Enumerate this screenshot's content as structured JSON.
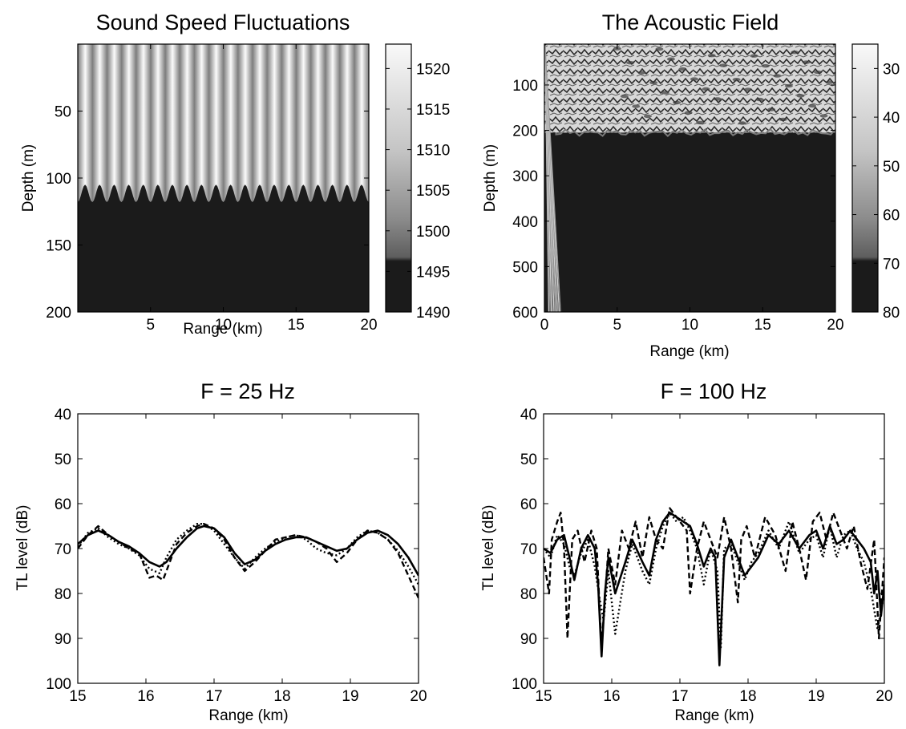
{
  "chart_data": [
    {
      "type": "heatmap",
      "title": "Sound Speed Fluctuations",
      "xlabel": "Range (km)",
      "ylabel": "Depth (m)",
      "xlim": [
        0,
        20
      ],
      "ylim": [
        200,
        0
      ],
      "y_inverted": true,
      "xticks": [
        5,
        10,
        15,
        20
      ],
      "yticks": [
        50,
        100,
        150,
        200
      ],
      "colormap": "gray",
      "num_oscillations": 20,
      "mixed_layer_depth_range_m": [
        105,
        118
      ],
      "colorbar": {
        "ticks": [
          1520,
          1515,
          1510,
          1505,
          1500,
          1495,
          1490
        ],
        "range": [
          1490,
          1523
        ]
      }
    },
    {
      "type": "heatmap",
      "title": "The Acoustic Field",
      "xlabel": "Range (km)",
      "ylabel": "Depth (m)",
      "xlim": [
        0,
        20
      ],
      "ylim": [
        600,
        10
      ],
      "y_inverted": true,
      "xticks": [
        0,
        5,
        10,
        15,
        20
      ],
      "yticks": [
        100,
        200,
        300,
        400,
        500,
        600
      ],
      "colormap": "gray",
      "bright_layer_depth_m": 205,
      "colorbar": {
        "ticks": [
          30,
          40,
          50,
          60,
          70,
          80
        ],
        "range": [
          25,
          80
        ]
      }
    },
    {
      "type": "line",
      "title": "F = 25 Hz",
      "xlabel": "Range (km)",
      "ylabel": "TL level (dB)",
      "xlim": [
        15,
        20
      ],
      "ylim": [
        100,
        40
      ],
      "y_inverted": true,
      "xticks": [
        15,
        16,
        17,
        18,
        19,
        20
      ],
      "yticks": [
        40,
        50,
        60,
        70,
        80,
        90,
        100
      ],
      "series": [
        {
          "style": "solid",
          "x": [
            15.0,
            15.15,
            15.3,
            15.45,
            15.6,
            15.75,
            15.9,
            16.05,
            16.2,
            16.3,
            16.45,
            16.6,
            16.75,
            16.85,
            17.0,
            17.15,
            17.3,
            17.45,
            17.6,
            17.75,
            17.9,
            18.05,
            18.2,
            18.35,
            18.5,
            18.65,
            18.8,
            18.95,
            19.1,
            19.25,
            19.4,
            19.55,
            19.7,
            19.85,
            20.0
          ],
          "y": [
            69,
            67,
            66,
            67,
            68.5,
            69.5,
            71,
            73,
            74,
            73,
            70,
            67.5,
            65.5,
            65,
            65.5,
            67.5,
            71,
            73.5,
            72.5,
            70.5,
            69,
            68,
            67.5,
            67.5,
            68.5,
            69.5,
            70.5,
            70,
            68,
            66.5,
            66,
            67,
            69,
            72,
            76
          ]
        },
        {
          "style": "dotted",
          "x": [
            15.0,
            15.15,
            15.3,
            15.45,
            15.6,
            15.75,
            15.9,
            16.05,
            16.2,
            16.3,
            16.45,
            16.6,
            16.75,
            16.85,
            17.0,
            17.15,
            17.3,
            17.45,
            17.6,
            17.75,
            17.9,
            18.05,
            18.2,
            18.35,
            18.5,
            18.65,
            18.8,
            18.95,
            19.1,
            19.25,
            19.4,
            19.55,
            19.7,
            19.85,
            20.0
          ],
          "y": [
            69.5,
            66.5,
            65.5,
            67.5,
            69,
            70,
            71.5,
            74.5,
            75.5,
            72,
            68,
            66,
            64.5,
            64.5,
            66,
            69,
            72,
            74.5,
            72,
            70,
            68.5,
            67.5,
            67,
            68,
            70,
            71,
            71.5,
            70,
            67.5,
            66,
            66.5,
            68,
            70.5,
            74,
            78
          ]
        },
        {
          "style": "dashed",
          "x": [
            15.0,
            15.15,
            15.3,
            15.45,
            15.6,
            15.75,
            15.9,
            16.05,
            16.15,
            16.25,
            16.35,
            16.45,
            16.6,
            16.75,
            16.85,
            17.0,
            17.15,
            17.3,
            17.45,
            17.6,
            17.75,
            17.9,
            18.05,
            18.2,
            18.35,
            18.5,
            18.65,
            18.8,
            18.95,
            19.1,
            19.25,
            19.4,
            19.55,
            19.7,
            19.85,
            20.0
          ],
          "y": [
            70,
            67,
            65,
            67,
            68.5,
            70,
            71,
            76.5,
            76,
            77,
            73,
            69,
            66.5,
            65,
            64.5,
            65.5,
            68,
            72,
            75,
            73,
            70.5,
            68,
            67.5,
            67,
            67.5,
            68.5,
            70,
            73,
            71,
            68,
            66,
            66.5,
            68,
            71,
            76,
            81
          ]
        }
      ]
    },
    {
      "type": "line",
      "title": "F = 100 Hz",
      "xlabel": "Range (km)",
      "ylabel": "TL level (dB)",
      "xlim": [
        15,
        20
      ],
      "ylim": [
        100,
        40
      ],
      "y_inverted": true,
      "xticks": [
        15,
        16,
        17,
        18,
        19,
        20
      ],
      "yticks": [
        40,
        50,
        60,
        70,
        80,
        90,
        100
      ],
      "series": [
        {
          "style": "solid",
          "x": [
            15.0,
            15.1,
            15.2,
            15.3,
            15.38,
            15.45,
            15.55,
            15.65,
            15.75,
            15.8,
            15.85,
            15.9,
            15.95,
            16.05,
            16.2,
            16.3,
            16.45,
            16.55,
            16.65,
            16.75,
            16.85,
            16.95,
            17.05,
            17.15,
            17.25,
            17.35,
            17.45,
            17.52,
            17.58,
            17.65,
            17.75,
            17.85,
            17.95,
            18.05,
            18.15,
            18.3,
            18.45,
            18.6,
            18.75,
            18.9,
            19.0,
            19.1,
            19.2,
            19.3,
            19.4,
            19.5,
            19.6,
            19.7,
            19.8,
            19.85,
            19.9,
            19.95,
            20.0
          ],
          "y": [
            70,
            71,
            68,
            67,
            72,
            77,
            70,
            67,
            70,
            78,
            94,
            80,
            72,
            80,
            73,
            68,
            73,
            76,
            68,
            64,
            62,
            63,
            64,
            65,
            69,
            74,
            70,
            72,
            96,
            72,
            68,
            72,
            76,
            74,
            72,
            67,
            69,
            66,
            70,
            67,
            66,
            70,
            65,
            69,
            68,
            66,
            68,
            70,
            73,
            80,
            75,
            85,
            78
          ]
        },
        {
          "style": "dotted",
          "x": [
            15.0,
            15.1,
            15.2,
            15.3,
            15.38,
            15.45,
            15.55,
            15.65,
            15.75,
            15.82,
            15.88,
            15.95,
            16.05,
            16.2,
            16.3,
            16.45,
            16.55,
            16.65,
            16.75,
            16.85,
            16.95,
            17.05,
            17.15,
            17.25,
            17.35,
            17.45,
            17.55,
            17.6,
            17.65,
            17.75,
            17.85,
            17.95,
            18.05,
            18.15,
            18.3,
            18.45,
            18.6,
            18.75,
            18.9,
            19.0,
            19.1,
            19.2,
            19.3,
            19.4,
            19.5,
            19.6,
            19.7,
            19.8,
            19.9,
            20.0
          ],
          "y": [
            70,
            72,
            67,
            69,
            74,
            76,
            71,
            68,
            74,
            81,
            86,
            75,
            89,
            75,
            69,
            75,
            78,
            70,
            65,
            62,
            64,
            63,
            66,
            70,
            78,
            70,
            75,
            92,
            70,
            69,
            73,
            77,
            73,
            71,
            66,
            70,
            64,
            71,
            68,
            67,
            72,
            65,
            72,
            67,
            66,
            70,
            73,
            79,
            88,
            80
          ]
        },
        {
          "style": "dashed",
          "x": [
            15.0,
            15.08,
            15.12,
            15.2,
            15.25,
            15.3,
            15.35,
            15.42,
            15.5,
            15.6,
            15.7,
            15.78,
            15.85,
            15.95,
            16.05,
            16.15,
            16.25,
            16.35,
            16.45,
            16.55,
            16.65,
            16.75,
            16.85,
            16.95,
            17.05,
            17.1,
            17.15,
            17.25,
            17.35,
            17.45,
            17.55,
            17.65,
            17.75,
            17.85,
            17.9,
            17.98,
            18.1,
            18.25,
            18.4,
            18.55,
            18.65,
            18.75,
            18.85,
            18.95,
            19.05,
            19.15,
            19.25,
            19.35,
            19.45,
            19.55,
            19.65,
            19.75,
            19.85,
            19.92,
            20.0
          ],
          "y": [
            72,
            80,
            68,
            64,
            62,
            70,
            90,
            68,
            66,
            73,
            66,
            70,
            92,
            70,
            78,
            66,
            70,
            64,
            72,
            63,
            68,
            70,
            61,
            63,
            65,
            66,
            80,
            70,
            64,
            68,
            72,
            63,
            70,
            82,
            68,
            65,
            72,
            63,
            67,
            75,
            64,
            70,
            77,
            64,
            62,
            68,
            62,
            66,
            70,
            65,
            73,
            79,
            68,
            90,
            72
          ]
        }
      ]
    }
  ]
}
